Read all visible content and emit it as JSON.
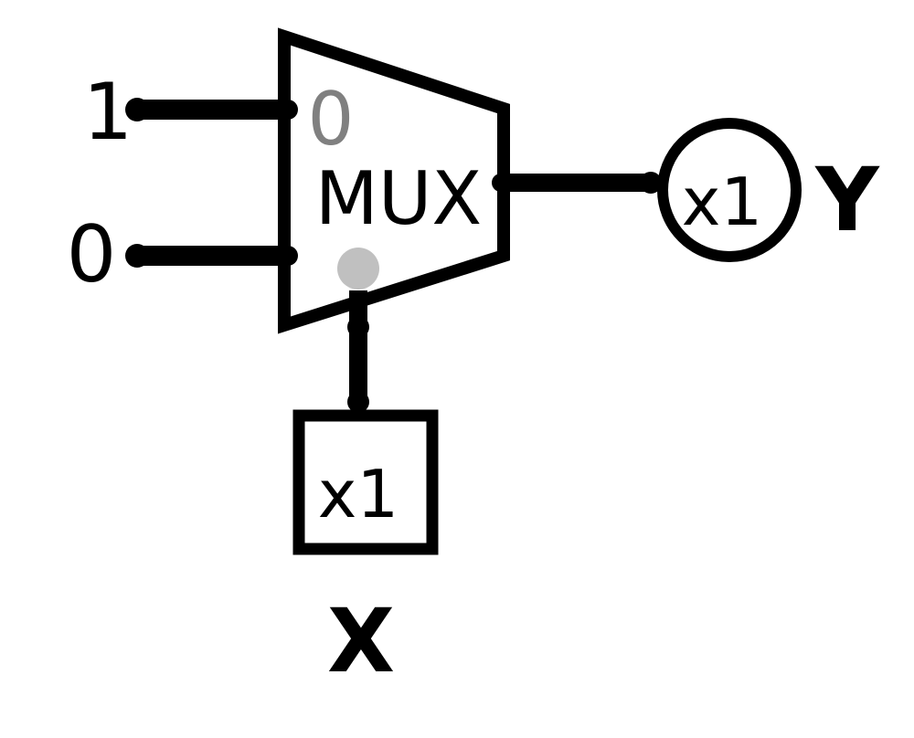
{
  "diagram": {
    "inputs": {
      "const_top": "1",
      "const_bottom": "0"
    },
    "mux": {
      "label": "MUX",
      "port0_label": "0"
    },
    "input_pin": {
      "value": "x1",
      "name": "X"
    },
    "output_pin": {
      "value": "x1",
      "name": "Y"
    },
    "colors": {
      "wire": "#000000",
      "port_label": "#808080",
      "select_dot": "#c0c0c0",
      "background": "#ffffff"
    }
  }
}
